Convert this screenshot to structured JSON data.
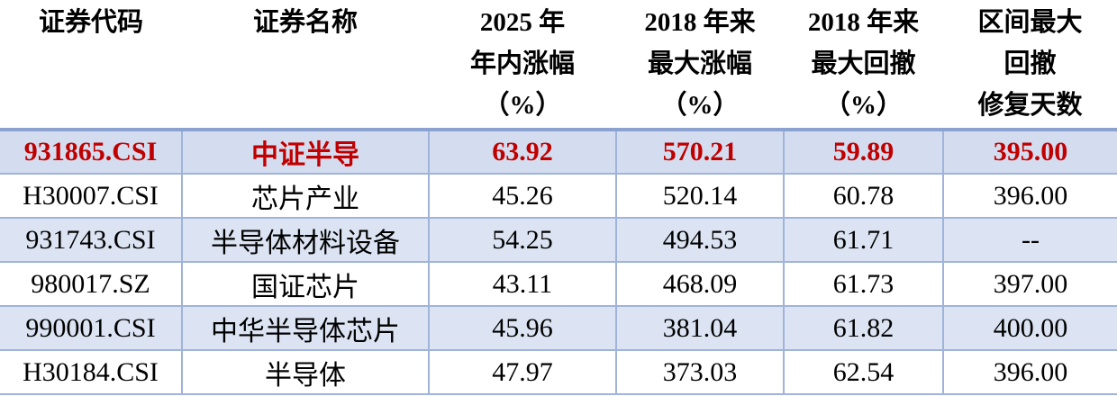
{
  "table": {
    "headers": [
      [
        "证券代码"
      ],
      [
        "证券名称"
      ],
      [
        "2025 年",
        "年内涨幅",
        "（%）"
      ],
      [
        "2018 年来",
        "最大涨幅",
        "（%）"
      ],
      [
        "2018 年来",
        "最大回撤",
        "（%）"
      ],
      [
        "区间最大",
        "回撤",
        "修复天数"
      ]
    ],
    "rows": [
      [
        "931865.CSI",
        "中证半导",
        "63.92",
        "570.21",
        "59.89",
        "395.00"
      ],
      [
        "H30007.CSI",
        "芯片产业",
        "45.26",
        "520.14",
        "60.78",
        "396.00"
      ],
      [
        "931743.CSI",
        "半导体材料设备",
        "54.25",
        "494.53",
        "61.71",
        "--"
      ],
      [
        "980017.SZ",
        "国证芯片",
        "43.11",
        "468.09",
        "61.73",
        "397.00"
      ],
      [
        "990001.CSI",
        "中华半导体芯片",
        "45.96",
        "381.04",
        "61.82",
        "400.00"
      ],
      [
        "H30184.CSI",
        "半导体",
        "47.97",
        "373.03",
        "62.54",
        "396.00"
      ]
    ],
    "highlight_row_index": 0
  },
  "colors": {
    "highlight_text": "#c00000",
    "highlight_row_bg": "#d4ddef",
    "striped_row_bg": "#dce4f3",
    "grid_line": "#9fb3db",
    "header_rule": "#8ba1cf"
  }
}
